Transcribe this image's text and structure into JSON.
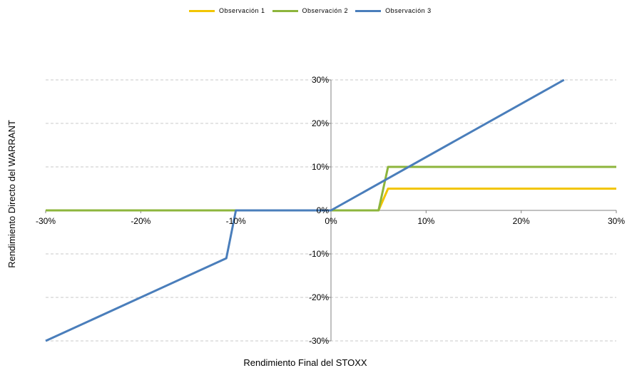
{
  "chart_data": {
    "type": "line",
    "xlabel": "Rendimiento Final del STOXX",
    "ylabel": "Rendimiento Directo del WARRANT",
    "xlim": [
      -0.3,
      0.3
    ],
    "ylim": [
      -0.3,
      0.3
    ],
    "x_ticks": [
      "-30%",
      "-20%",
      "-10%",
      "0%",
      "10%",
      "20%",
      "30%"
    ],
    "y_ticks": [
      "30%",
      "20%",
      "10%",
      "0%",
      "-10%",
      "-20%",
      "-30%"
    ],
    "grid": "horizontal dashed",
    "legend_position": "top",
    "series": [
      {
        "name": "Observación 1",
        "color": "#F2C500",
        "points": [
          [
            -0.3,
            0.0
          ],
          [
            0.05,
            0.0
          ],
          [
            0.06,
            0.05
          ],
          [
            0.3,
            0.05
          ]
        ]
      },
      {
        "name": "Observación 2",
        "color": "#8DB53C",
        "points": [
          [
            -0.3,
            0.0
          ],
          [
            0.05,
            0.0
          ],
          [
            0.06,
            0.1
          ],
          [
            0.3,
            0.1
          ]
        ]
      },
      {
        "name": "Observación 3",
        "color": "#4A7EBB",
        "points": [
          [
            -0.3,
            -0.3
          ],
          [
            -0.11,
            -0.11
          ],
          [
            -0.1,
            0.0
          ],
          [
            0.0,
            0.0
          ],
          [
            0.245,
            0.3
          ]
        ]
      }
    ]
  }
}
